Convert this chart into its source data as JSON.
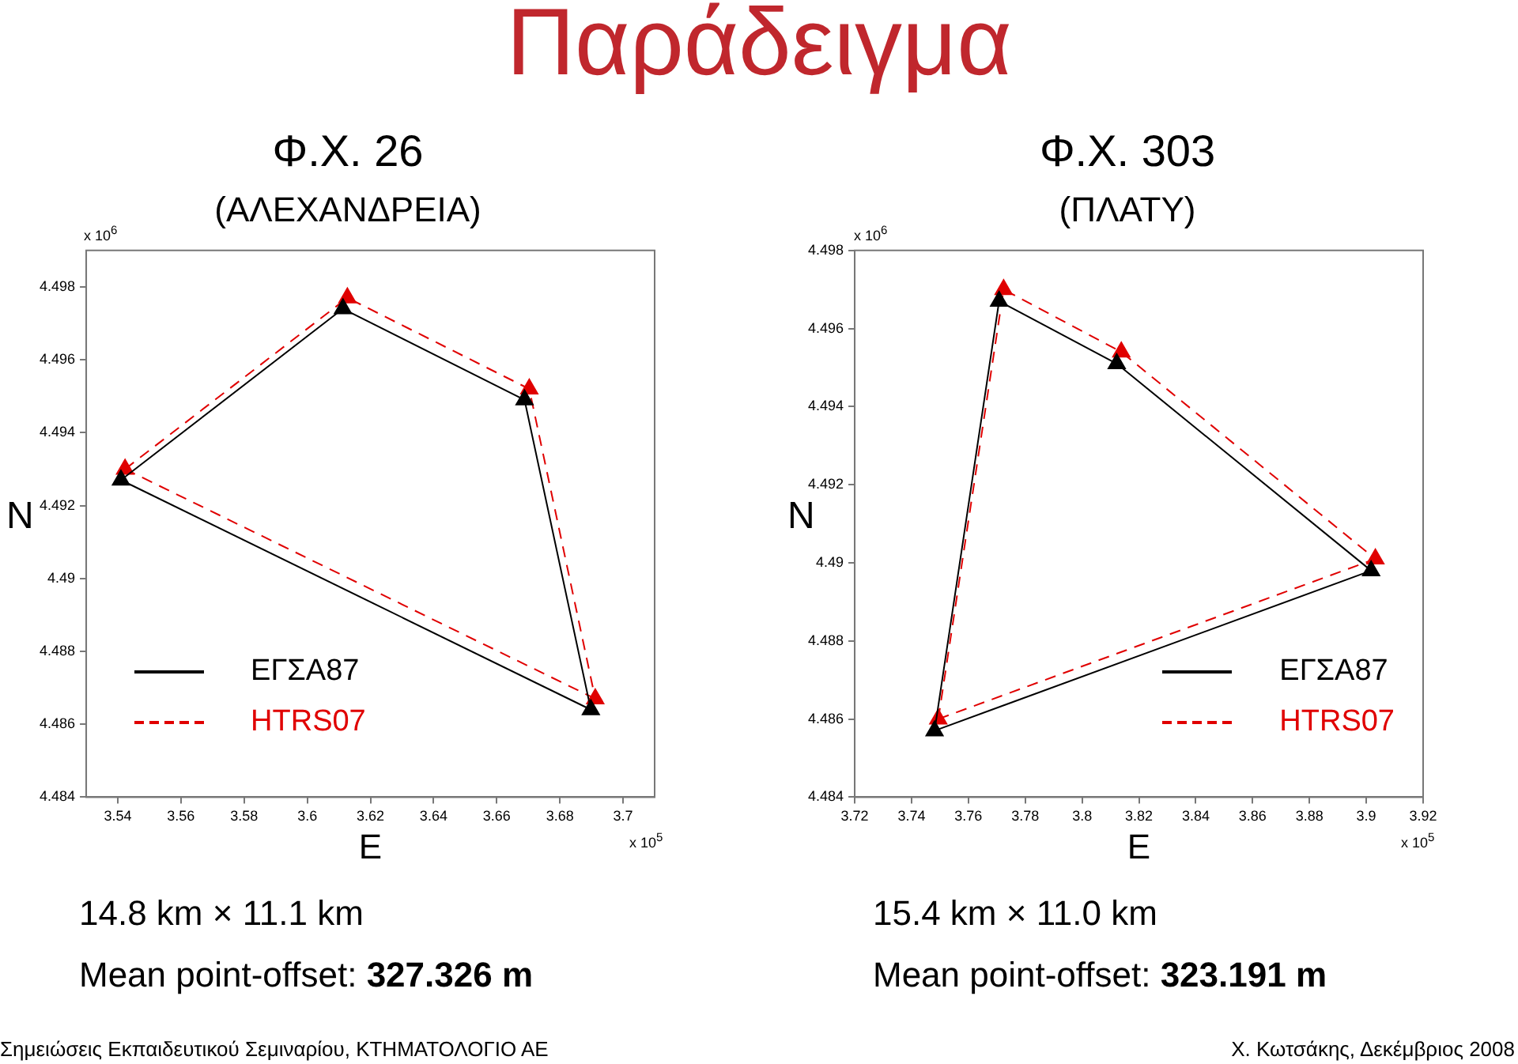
{
  "chart_data": [
    {
      "type": "line",
      "title": "Φ.Χ. 26",
      "subtitle": "(ΑΛΕΧΑΝΔΡΕΙΑ)",
      "xlabel": "E",
      "ylabel": "N",
      "xlim": [
        3.53,
        3.71
      ],
      "xticks": [
        3.54,
        3.56,
        3.58,
        3.6,
        3.62,
        3.64,
        3.66,
        3.68,
        3.7
      ],
      "ylim": [
        4.484,
        4.499
      ],
      "yticks": [
        4.484,
        4.486,
        4.488,
        4.49,
        4.492,
        4.494,
        4.496,
        4.498
      ],
      "grid": false,
      "legend": "bottom left",
      "marker": "triangle",
      "series": [
        {
          "name": "ΕΓΣΑ87",
          "color": "#000000",
          "line_style": "solid",
          "x": [
            3.541,
            3.6113,
            3.6688,
            3.6898
          ],
          "values": [
            4.4927,
            4.4974,
            4.4949,
            4.4864
          ]
        },
        {
          "name": "HTRS07",
          "color": "#e00000",
          "line_style": "dashed",
          "x": [
            3.5423,
            3.6127,
            3.6703,
            3.6912
          ],
          "values": [
            4.493,
            4.4977,
            4.4952,
            4.4867
          ]
        },
        {
          "color": "#000000",
          "line_style": "solid",
          "marker": "none",
          "x": [
            3.541,
            3.6898
          ],
          "values": [
            4.4927,
            4.4864
          ]
        },
        {
          "color": "#e00000",
          "line_style": "dashed",
          "marker": "none",
          "x": [
            3.5423,
            3.6912
          ],
          "values": [
            4.493,
            4.4867
          ]
        }
      ],
      "annotations": [
        "Παράδειγμα",
        "x 10$^{6}$",
        "x 10$^{5}$",
        "14.8 km × 11.1 km",
        "Mean point-offset: 327.326 m",
        "Σημειώσεις Εκπαιδευτικού Σεμιναρίου, ΚΤΗΜΑΤΟΛΟΓΙΟ ΑΕ"
      ]
    },
    {
      "type": "line",
      "title": "Φ.Χ. 303",
      "subtitle": "(ΠΛΑΤΥ)",
      "xlabel": "E",
      "ylabel": "N",
      "xlim": [
        3.72,
        3.92
      ],
      "xticks": [
        3.72,
        3.74,
        3.76,
        3.78,
        3.8,
        3.82,
        3.84,
        3.86,
        3.88,
        3.9,
        3.92
      ],
      "ylim": [
        4.484,
        4.498
      ],
      "yticks": [
        4.484,
        4.486,
        4.488,
        4.49,
        4.492,
        4.494,
        4.496,
        4.498
      ],
      "grid": false,
      "legend": "bottom right",
      "marker": "triangle",
      "series": [
        {
          "name": "ΕΓΣΑ87",
          "color": "#000000",
          "line_style": "solid",
          "x": [
            3.7481,
            3.7708,
            3.8122,
            3.9017
          ],
          "values": [
            4.4857,
            4.4967,
            4.4951,
            4.4898
          ]
        },
        {
          "name": "HTRS07",
          "color": "#e00000",
          "line_style": "dashed",
          "x": [
            3.7494,
            3.7724,
            3.8138,
            3.9032
          ],
          "values": [
            4.486,
            4.497,
            4.4954,
            4.4901
          ]
        },
        {
          "color": "#000000",
          "line_style": "solid",
          "marker": "none",
          "x": [
            3.7481,
            3.9017
          ],
          "values": [
            4.4857,
            4.4898
          ]
        },
        {
          "color": "#e00000",
          "line_style": "dashed",
          "marker": "none",
          "x": [
            3.7494,
            3.9032
          ],
          "values": [
            4.486,
            4.4901
          ]
        }
      ],
      "annotations": [
        "x 10$^{6}$",
        "x 10$^{5}$",
        "15.4 km × 11.0 km",
        "Mean point-offset: 323.191 m",
        "Χ. Κωτσάκης, Δεκέμβριος 2008"
      ]
    }
  ]
}
